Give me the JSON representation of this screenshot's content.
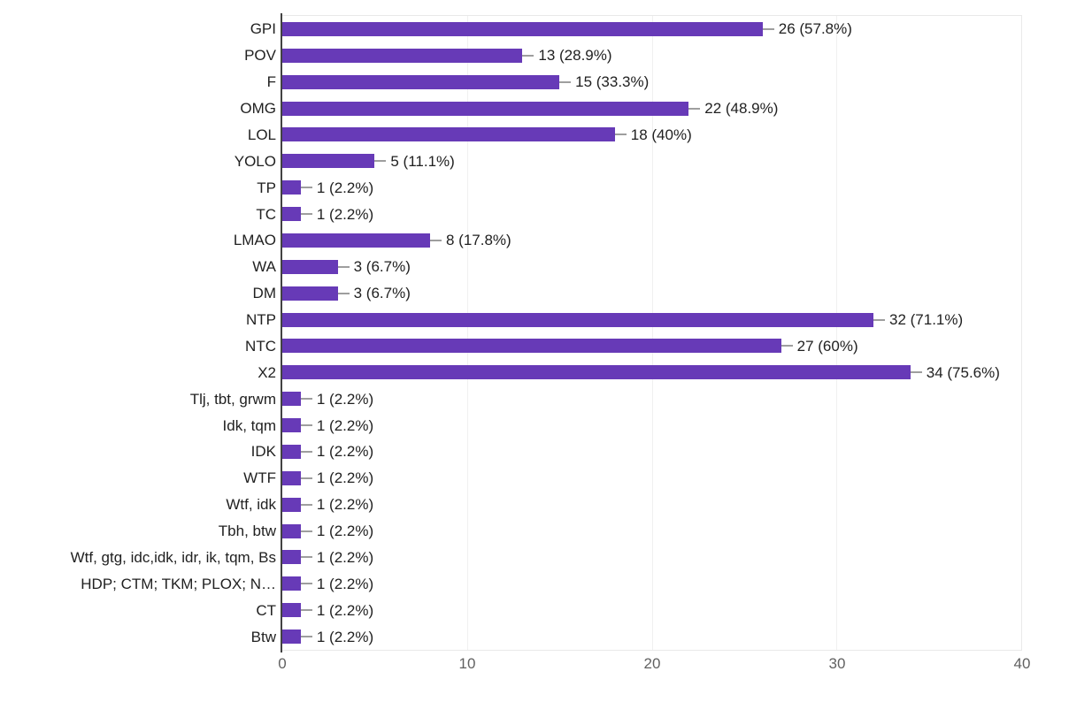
{
  "chart_data": {
    "type": "bar",
    "orientation": "horizontal",
    "title": "",
    "xlabel": "",
    "ylabel": "",
    "xlim": [
      0,
      40
    ],
    "x_ticks": [
      0,
      10,
      20,
      30,
      40
    ],
    "grid": "vertical, light",
    "legend": "none",
    "bar_color": "#673ab7",
    "categories": [
      "GPI",
      "POV",
      "F",
      "OMG",
      "LOL",
      "YOLO",
      "TP",
      "TC",
      "LMAO",
      "WA",
      "DM",
      "NTP",
      "NTC",
      "X2",
      "Tlj, tbt, grwm",
      "Idk, tqm",
      "IDK",
      "WTF",
      "Wtf, idk",
      "Tbh, btw",
      "Wtf, gtg, idc,idk, idr, ik, tqm, Bs",
      "HDP; CTM; TKM; PLOX; N…",
      "CT",
      "Btw"
    ],
    "values": [
      26,
      13,
      15,
      22,
      18,
      5,
      1,
      1,
      8,
      3,
      3,
      32,
      27,
      34,
      1,
      1,
      1,
      1,
      1,
      1,
      1,
      1,
      1,
      1
    ],
    "data_labels": [
      "26 (57.8%)",
      "13 (28.9%)",
      "15 (33.3%)",
      "22 (48.9%)",
      "18 (40%)",
      "5 (11.1%)",
      "1 (2.2%)",
      "1 (2.2%)",
      "8 (17.8%)",
      "3 (6.7%)",
      "3 (6.7%)",
      "32 (71.1%)",
      "27 (60%)",
      "34 (75.6%)",
      "1 (2.2%)",
      "1 (2.2%)",
      "1 (2.2%)",
      "1 (2.2%)",
      "1 (2.2%)",
      "1 (2.2%)",
      "1 (2.2%)",
      "1 (2.2%)",
      "1 (2.2%)",
      "1 (2.2%)"
    ]
  },
  "colors": {
    "bar": "#673ab7",
    "axis_line": "#424242",
    "gridline": "#f0f0f0",
    "connector": "#9e9e9e",
    "category_text": "#212121",
    "value_text": "#212121",
    "tick_text": "#616161",
    "background": "#ffffff"
  }
}
